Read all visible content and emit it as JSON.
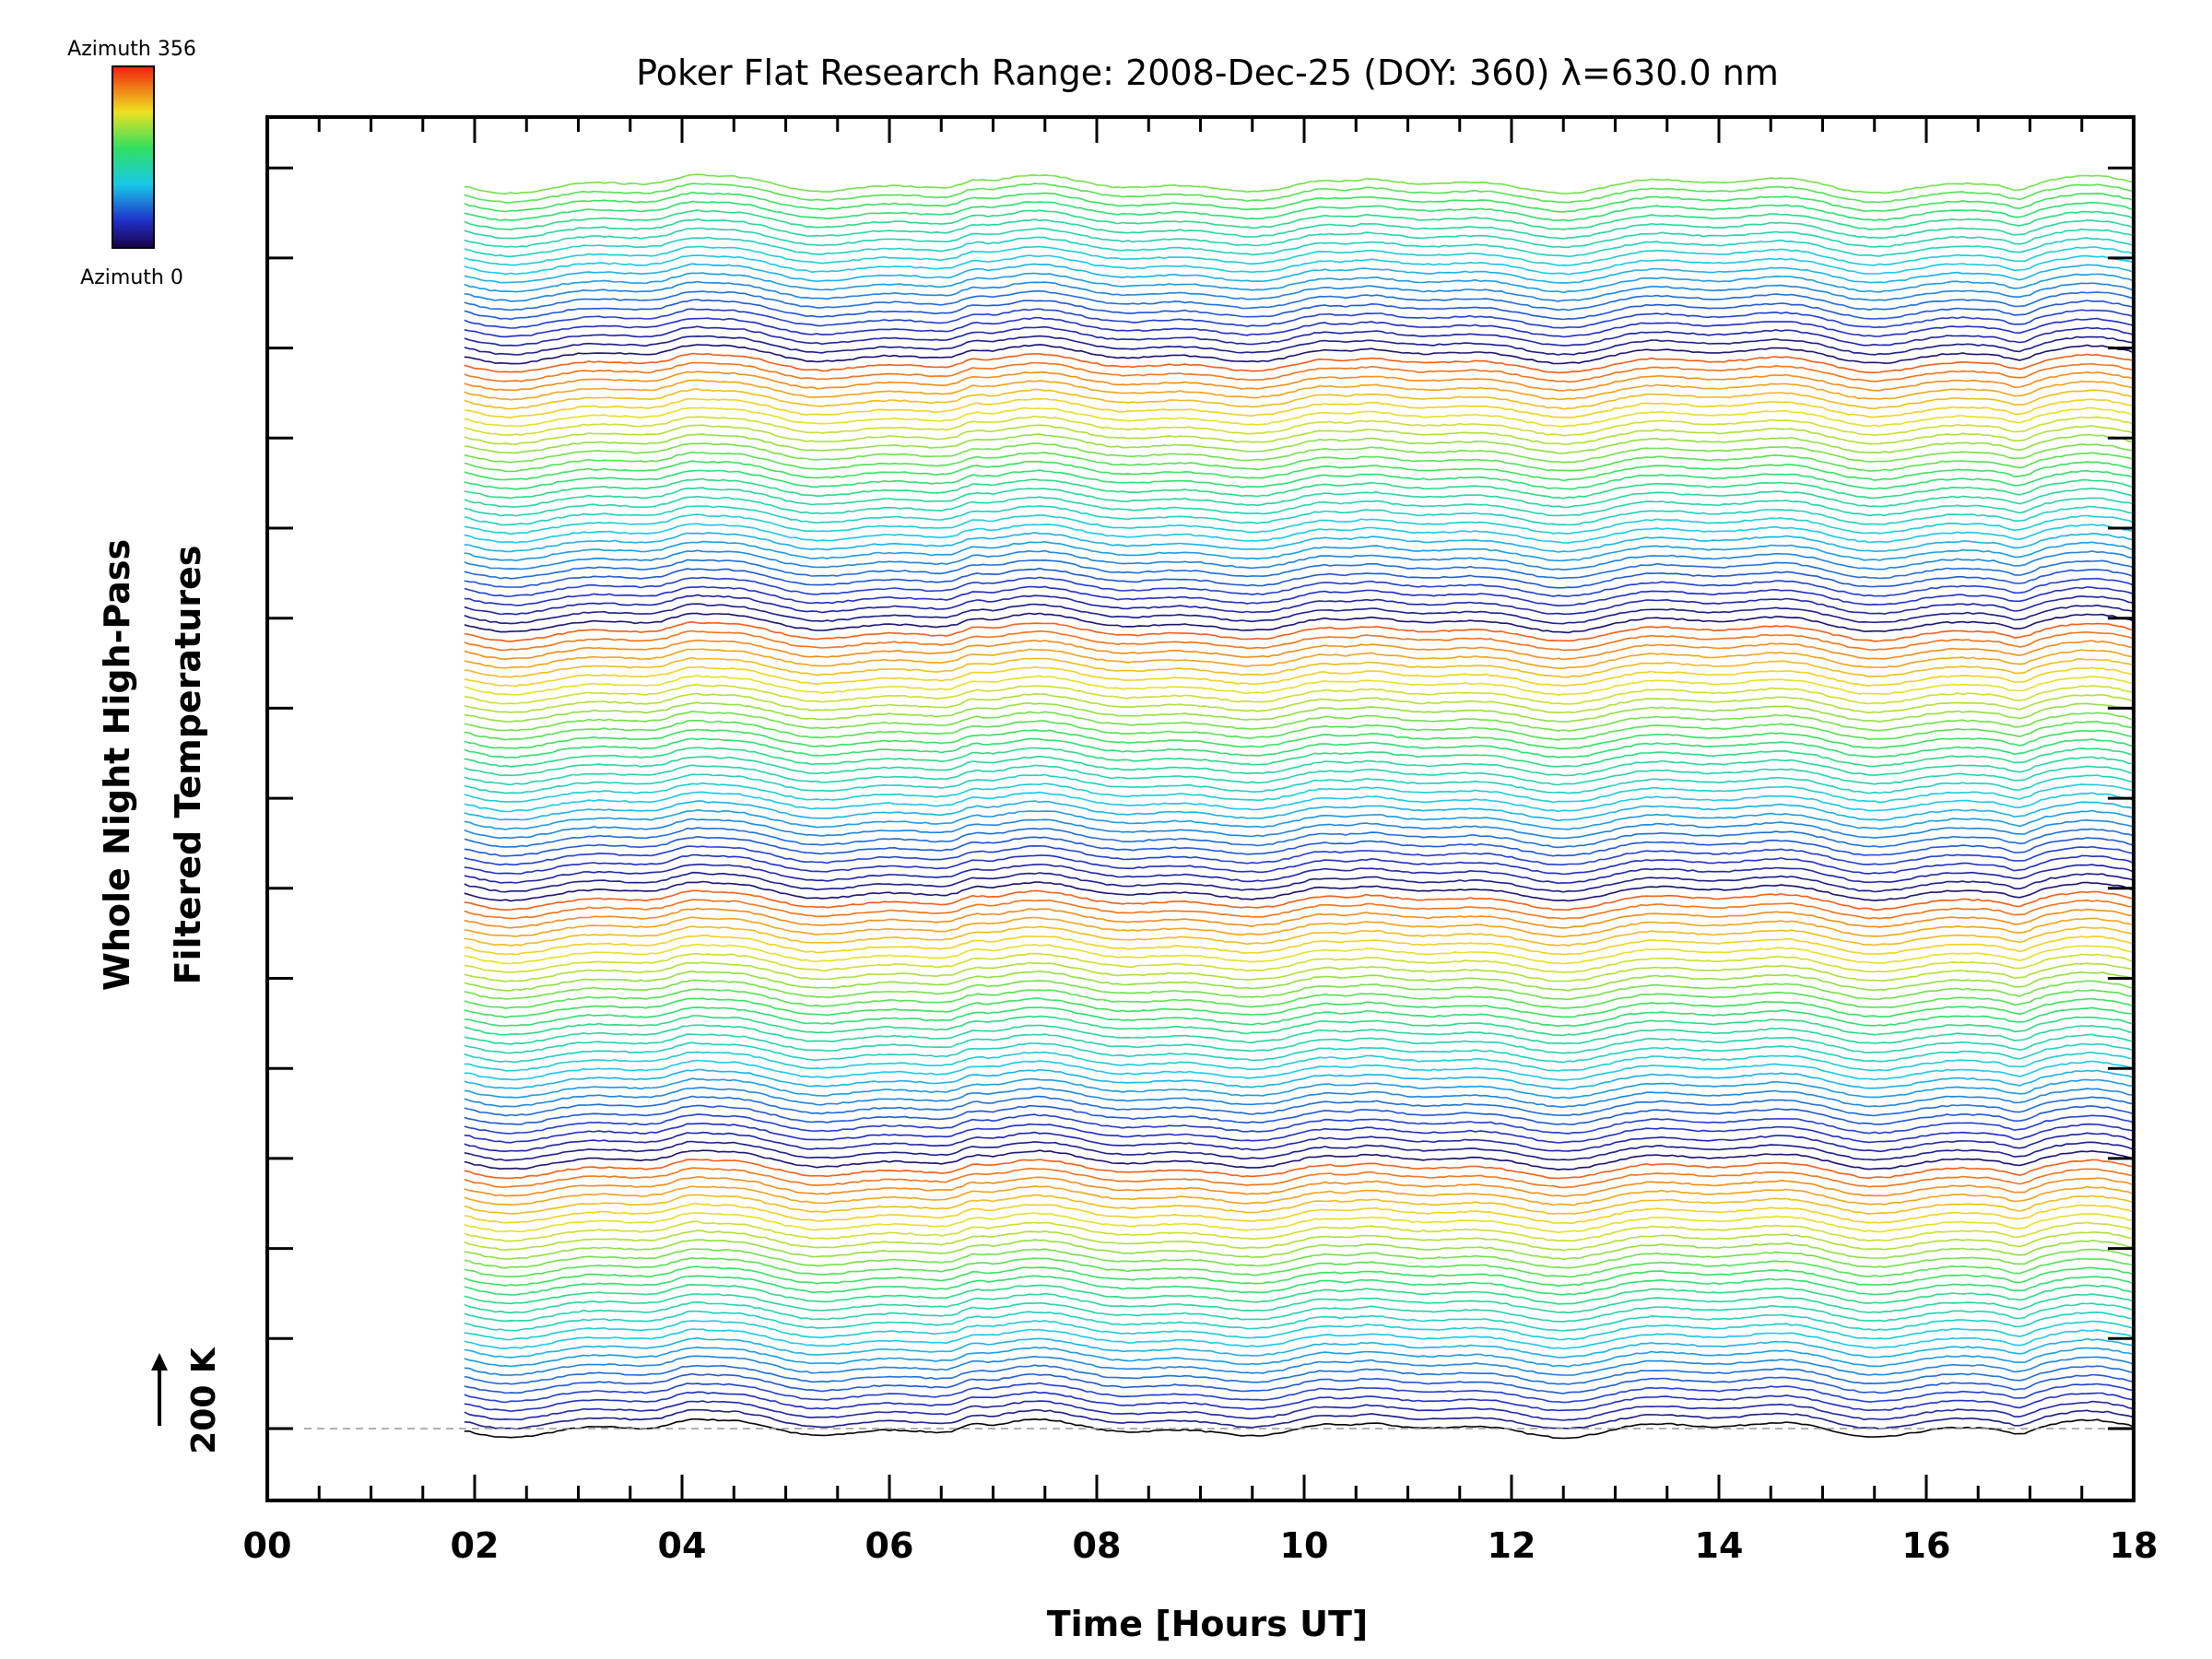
{
  "chart_data": {
    "type": "line",
    "title": "Poker Flat Research Range: 2008-Dec-25 (DOY: 360) λ=630.0 nm",
    "xlabel": "Time [Hours UT]",
    "ylabel_line1": "Whole Night High-Pass",
    "ylabel_line2": "Filtered Temperatures",
    "xlim": [
      0,
      18
    ],
    "x_tick_labels": [
      "00",
      "02",
      "04",
      "06",
      "08",
      "10",
      "12",
      "14",
      "16",
      "18"
    ],
    "scale_bar_label": "200 K",
    "colorbar": {
      "label_top": "Azimuth 356",
      "label_bottom": "Azimuth 0",
      "colormap": "rainbow (dark blue → cyan → green → yellow → red)"
    },
    "series_count": 140,
    "data_start_hour": 1.9,
    "data_end_hour": 18,
    "zero_line": "dashed gray"
  }
}
